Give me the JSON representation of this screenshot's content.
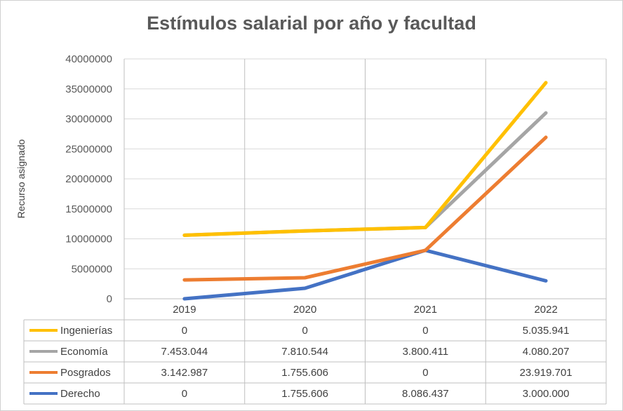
{
  "chart_data": {
    "type": "line",
    "title": "Estímulos salarial por año y facultad",
    "xlabel": "",
    "ylabel": "Recurso asignado",
    "categories": [
      "2019",
      "2020",
      "2021",
      "2022"
    ],
    "ylim": [
      0,
      40000000
    ],
    "yticks": [
      "0",
      "5000000",
      "10000000",
      "15000000",
      "20000000",
      "25000000",
      "30000000",
      "35000000",
      "40000000"
    ],
    "grid": true,
    "stacked": true,
    "series": [
      {
        "name": "Ingenierías",
        "color": "#FFC000",
        "values": [
          0,
          0,
          0,
          5035941
        ],
        "labels": [
          "0",
          "0",
          "0",
          "5.035.941"
        ]
      },
      {
        "name": "Economía",
        "color": "#A5A5A5",
        "values": [
          7453044,
          7810544,
          3800411,
          4080207
        ],
        "labels": [
          "7.453.044",
          "7.810.544",
          "3.800.411",
          "4.080.207"
        ]
      },
      {
        "name": "Posgrados",
        "color": "#ED7D31",
        "values": [
          3142987,
          1755606,
          0,
          23919701
        ],
        "labels": [
          "3.142.987",
          "1.755.606",
          "0",
          "23.919.701"
        ]
      },
      {
        "name": "Derecho",
        "color": "#4472C4",
        "values": [
          0,
          1755606,
          8086437,
          3000000
        ],
        "labels": [
          "0",
          "1.755.606",
          "8.086.437",
          "3.000.000"
        ]
      }
    ]
  }
}
